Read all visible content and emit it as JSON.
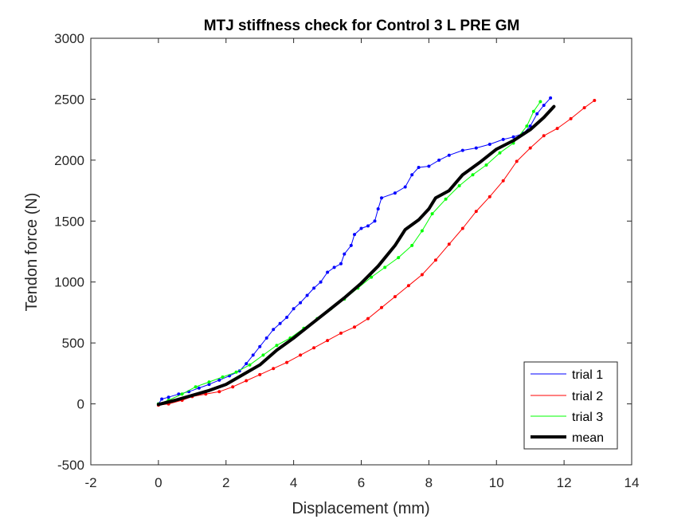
{
  "chart_data": {
    "type": "line",
    "title": "MTJ stiffness check for Control 3 L PRE GM",
    "xlabel": "Displacement (mm)",
    "ylabel": "Tendon force (N)",
    "xlim": [
      -2,
      14
    ],
    "ylim": [
      -500,
      3000
    ],
    "xticks": [
      -2,
      0,
      2,
      4,
      6,
      8,
      10,
      12,
      14
    ],
    "yticks": [
      -500,
      0,
      500,
      1000,
      1500,
      2000,
      2500,
      3000
    ],
    "grid": false,
    "legend_position": "bottom-right",
    "series": [
      {
        "name": "trial 1",
        "color": "#0000ff",
        "line": "thin",
        "markers": true,
        "points": [
          [
            0.0,
            0
          ],
          [
            0.1,
            40
          ],
          [
            0.3,
            55
          ],
          [
            0.6,
            80
          ],
          [
            0.9,
            100
          ],
          [
            1.2,
            130
          ],
          [
            1.5,
            160
          ],
          [
            1.8,
            195
          ],
          [
            2.1,
            230
          ],
          [
            2.4,
            270
          ],
          [
            2.6,
            330
          ],
          [
            2.8,
            400
          ],
          [
            3.0,
            470
          ],
          [
            3.2,
            540
          ],
          [
            3.4,
            610
          ],
          [
            3.6,
            660
          ],
          [
            3.8,
            710
          ],
          [
            4.0,
            780
          ],
          [
            4.2,
            830
          ],
          [
            4.4,
            890
          ],
          [
            4.6,
            950
          ],
          [
            4.8,
            1000
          ],
          [
            5.0,
            1080
          ],
          [
            5.2,
            1120
          ],
          [
            5.4,
            1150
          ],
          [
            5.5,
            1230
          ],
          [
            5.7,
            1300
          ],
          [
            5.8,
            1390
          ],
          [
            6.0,
            1440
          ],
          [
            6.2,
            1460
          ],
          [
            6.4,
            1500
          ],
          [
            6.5,
            1600
          ],
          [
            6.6,
            1690
          ],
          [
            7.0,
            1730
          ],
          [
            7.3,
            1780
          ],
          [
            7.5,
            1880
          ],
          [
            7.7,
            1940
          ],
          [
            8.0,
            1950
          ],
          [
            8.3,
            2000
          ],
          [
            8.6,
            2040
          ],
          [
            9.0,
            2080
          ],
          [
            9.4,
            2100
          ],
          [
            9.8,
            2130
          ],
          [
            10.2,
            2170
          ],
          [
            10.5,
            2190
          ],
          [
            10.8,
            2220
          ],
          [
            11.0,
            2280
          ],
          [
            11.2,
            2380
          ],
          [
            11.4,
            2450
          ],
          [
            11.6,
            2510
          ]
        ]
      },
      {
        "name": "trial 2",
        "color": "#ff0000",
        "line": "thin",
        "markers": true,
        "points": [
          [
            0.0,
            -10
          ],
          [
            0.3,
            0
          ],
          [
            0.7,
            30
          ],
          [
            1.0,
            60
          ],
          [
            1.4,
            80
          ],
          [
            1.8,
            100
          ],
          [
            2.2,
            140
          ],
          [
            2.6,
            190
          ],
          [
            3.0,
            240
          ],
          [
            3.4,
            290
          ],
          [
            3.8,
            340
          ],
          [
            4.2,
            400
          ],
          [
            4.6,
            460
          ],
          [
            5.0,
            520
          ],
          [
            5.4,
            580
          ],
          [
            5.8,
            630
          ],
          [
            6.2,
            700
          ],
          [
            6.6,
            790
          ],
          [
            7.0,
            880
          ],
          [
            7.4,
            970
          ],
          [
            7.8,
            1060
          ],
          [
            8.2,
            1180
          ],
          [
            8.6,
            1310
          ],
          [
            9.0,
            1440
          ],
          [
            9.4,
            1580
          ],
          [
            9.8,
            1700
          ],
          [
            10.2,
            1830
          ],
          [
            10.6,
            1990
          ],
          [
            11.0,
            2100
          ],
          [
            11.4,
            2200
          ],
          [
            11.8,
            2260
          ],
          [
            12.2,
            2340
          ],
          [
            12.6,
            2430
          ],
          [
            12.9,
            2490
          ]
        ]
      },
      {
        "name": "trial 3",
        "color": "#00ff00",
        "line": "thin",
        "markers": true,
        "points": [
          [
            0.0,
            0
          ],
          [
            0.3,
            30
          ],
          [
            0.7,
            80
          ],
          [
            1.1,
            140
          ],
          [
            1.5,
            180
          ],
          [
            1.9,
            220
          ],
          [
            2.3,
            260
          ],
          [
            2.7,
            320
          ],
          [
            3.1,
            400
          ],
          [
            3.5,
            480
          ],
          [
            3.9,
            540
          ],
          [
            4.3,
            620
          ],
          [
            4.7,
            700
          ],
          [
            5.1,
            780
          ],
          [
            5.5,
            860
          ],
          [
            5.9,
            950
          ],
          [
            6.3,
            1040
          ],
          [
            6.7,
            1120
          ],
          [
            7.1,
            1200
          ],
          [
            7.5,
            1300
          ],
          [
            7.8,
            1420
          ],
          [
            8.1,
            1560
          ],
          [
            8.5,
            1680
          ],
          [
            8.9,
            1790
          ],
          [
            9.3,
            1880
          ],
          [
            9.7,
            1960
          ],
          [
            10.1,
            2060
          ],
          [
            10.5,
            2140
          ],
          [
            10.9,
            2280
          ],
          [
            11.1,
            2400
          ],
          [
            11.3,
            2480
          ]
        ]
      },
      {
        "name": "mean",
        "color": "#000000",
        "line": "thick",
        "markers": false,
        "points": [
          [
            0.0,
            -5
          ],
          [
            0.5,
            30
          ],
          [
            1.0,
            70
          ],
          [
            1.5,
            110
          ],
          [
            2.0,
            160
          ],
          [
            2.5,
            240
          ],
          [
            3.0,
            320
          ],
          [
            3.5,
            440
          ],
          [
            4.0,
            540
          ],
          [
            4.5,
            650
          ],
          [
            5.0,
            760
          ],
          [
            5.5,
            870
          ],
          [
            6.0,
            990
          ],
          [
            6.5,
            1130
          ],
          [
            7.0,
            1300
          ],
          [
            7.3,
            1430
          ],
          [
            7.7,
            1510
          ],
          [
            8.0,
            1600
          ],
          [
            8.2,
            1690
          ],
          [
            8.6,
            1750
          ],
          [
            9.0,
            1880
          ],
          [
            9.5,
            1980
          ],
          [
            10.0,
            2090
          ],
          [
            10.5,
            2160
          ],
          [
            11.0,
            2250
          ],
          [
            11.4,
            2350
          ],
          [
            11.7,
            2440
          ]
        ]
      }
    ]
  }
}
